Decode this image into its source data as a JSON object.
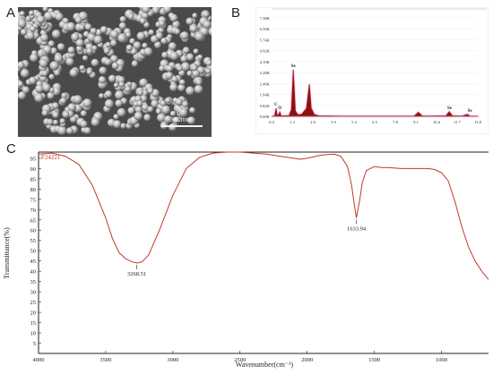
{
  "panels": {
    "a": "A",
    "b": "B",
    "c": "C"
  },
  "sem": {
    "scale_label": "300nm"
  },
  "eds": {
    "y_ticks": [
      "7.38K",
      "6.56K",
      "5.74K",
      "4.92K",
      "4.10K",
      "3.28K",
      "2.46K",
      "1.64K",
      "0.82K",
      "0.00K"
    ],
    "x_ticks": [
      "0.0",
      "1.3",
      "2.6",
      "3.9",
      "5.2",
      "6.5",
      "7.8",
      "9.1",
      "10.4",
      "11.7",
      "13.0"
    ],
    "peak_labels": [
      "C",
      "O",
      "Se",
      "Se",
      "Se"
    ],
    "colors": {
      "fill": "#8b1010",
      "glow": "#ff9ad0"
    }
  },
  "chart_data": [
    {
      "type": "area",
      "title": "",
      "xlabel": "",
      "ylabel": "",
      "xlim": [
        0.0,
        13.0
      ],
      "ylim": [
        0,
        7380
      ],
      "x_ticks": [
        "0.0",
        "1.3",
        "2.6",
        "3.9",
        "5.2",
        "6.5",
        "7.8",
        "9.1",
        "10.4",
        "11.7",
        "13.0"
      ],
      "y_ticks": [
        "7.38K",
        "6.56K",
        "5.74K",
        "4.92K",
        "4.10K",
        "3.28K",
        "2.46K",
        "1.64K",
        "0.82K",
        "0.00K"
      ],
      "x": [
        0.0,
        0.2,
        0.28,
        0.35,
        0.45,
        0.52,
        0.6,
        0.8,
        1.1,
        1.25,
        1.37,
        1.5,
        1.65,
        1.9,
        2.2,
        2.38,
        2.5,
        2.7,
        3.0,
        4.0,
        6.0,
        8.0,
        9.0,
        9.25,
        9.5,
        10.0,
        11.0,
        11.2,
        11.4,
        12.0,
        12.35,
        12.5,
        13.0
      ],
      "y": [
        0,
        40,
        600,
        60,
        140,
        320,
        50,
        40,
        60,
        500,
        3500,
        400,
        120,
        150,
        600,
        2400,
        600,
        120,
        40,
        20,
        15,
        15,
        30,
        300,
        30,
        20,
        40,
        350,
        40,
        20,
        150,
        20,
        10
      ],
      "peaks": [
        {
          "label": "C",
          "x": 0.28
        },
        {
          "label": "O",
          "x": 0.52
        },
        {
          "label": "Se",
          "x": 1.37
        },
        {
          "label": "Se",
          "x": 11.22
        },
        {
          "label": "Se",
          "x": 12.5
        }
      ]
    },
    {
      "type": "line",
      "title": "",
      "series_label": "F24221",
      "xlabel": "Wavenumber(cm⁻¹)",
      "ylabel": "Transmittance(%)",
      "xlim": [
        4000,
        650
      ],
      "ylim": [
        0,
        98
      ],
      "x_ticks": [
        4000,
        3500,
        3000,
        2500,
        2000,
        1500,
        1000
      ],
      "y_ticks": [
        5,
        10,
        15,
        20,
        25,
        30,
        35,
        40,
        45,
        50,
        55,
        60,
        65,
        70,
        75,
        80,
        85,
        90,
        95
      ],
      "x": [
        4000,
        3900,
        3800,
        3700,
        3600,
        3500,
        3450,
        3400,
        3350,
        3300,
        3268.51,
        3230,
        3180,
        3100,
        3000,
        2900,
        2800,
        2700,
        2600,
        2500,
        2400,
        2300,
        2200,
        2100,
        2050,
        2000,
        1900,
        1800,
        1750,
        1700,
        1670,
        1650,
        1633.94,
        1610,
        1590,
        1560,
        1530,
        1500,
        1450,
        1400,
        1300,
        1200,
        1100,
        1050,
        1000,
        950,
        900,
        850,
        800,
        750,
        700,
        650
      ],
      "y": [
        97,
        97.5,
        96,
        92,
        82,
        66,
        56,
        49,
        46,
        44.5,
        44,
        44.5,
        48,
        60,
        77,
        90,
        95.5,
        97.5,
        98,
        98,
        97.5,
        97,
        96,
        95,
        94.5,
        95,
        96.5,
        97,
        96,
        91,
        82,
        73,
        66,
        74,
        83,
        89,
        90,
        91,
        90.5,
        90.5,
        90,
        90,
        90,
        89.5,
        88,
        84,
        74,
        62,
        52,
        45,
        40,
        36
      ],
      "annotations": [
        {
          "label": "3268.51",
          "x": 3268.51
        },
        {
          "label": "1633.94",
          "x": 1633.94
        }
      ],
      "color": "#c0392b"
    }
  ]
}
